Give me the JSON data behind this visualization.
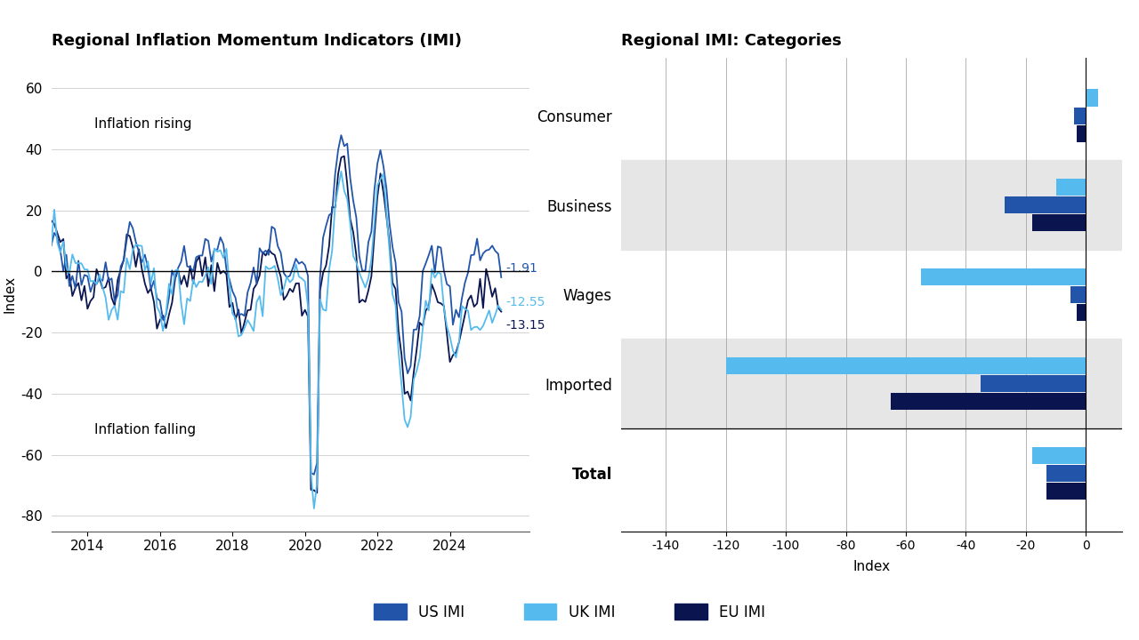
{
  "left_title": "Regional Inflation Momentum Indicators (IMI)",
  "right_title": "Regional IMI: Categories",
  "left_ylabel": "Index",
  "right_xlabel": "Index",
  "legend_entries": [
    "US IMI",
    "UK IMI",
    "EU IMI"
  ],
  "legend_colors": [
    "#2255aa",
    "#55bbee",
    "#0a1550"
  ],
  "line_colors_us": "#2255aa",
  "line_colors_uk": "#55bbee",
  "line_colors_eu": "#0a1550",
  "end_labels": [
    "-1.91",
    "-12.55",
    "-13.15"
  ],
  "end_label_colors": [
    "#2255aa",
    "#55bbee",
    "#0a1550"
  ],
  "annotation_rising": "Inflation rising",
  "annotation_falling": "Inflation falling",
  "left_yticks": [
    -80,
    -60,
    -40,
    -20,
    0,
    20,
    40,
    60
  ],
  "left_xticks": [
    2014,
    2016,
    2018,
    2020,
    2022,
    2024
  ],
  "bar_categories": [
    "Consumer",
    "Business",
    "Wages",
    "Imported",
    "Total"
  ],
  "bar_shaded": [
    false,
    true,
    false,
    true,
    false
  ],
  "bar_data_US": [
    -4,
    -27,
    -5,
    -35,
    -13
  ],
  "bar_data_UK": [
    4,
    -10,
    -55,
    -120,
    -18
  ],
  "bar_data_EU": [
    -3,
    -18,
    -3,
    -65,
    -13
  ],
  "bar_color_US": "#2255aa",
  "bar_color_UK": "#55bbee",
  "bar_color_EU": "#0a1550",
  "right_xlim": [
    -155,
    12
  ],
  "right_xticks": [
    -140,
    -120,
    -100,
    -80,
    -60,
    -40,
    -20,
    0
  ],
  "background_color": "#ffffff",
  "shade_color": "#e6e6e6",
  "grid_color_left": "#cccccc",
  "grid_color_right": "#999999"
}
